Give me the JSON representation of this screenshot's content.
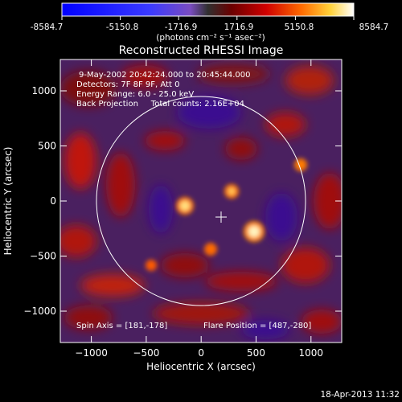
{
  "colorbar": {
    "ticks": [
      "-8584.7",
      "-5150.8",
      "-1716.9",
      "1716.9",
      "5150.8",
      "8584.7"
    ],
    "unit_label": "(photons cm⁻² s⁻¹ asec⁻²)"
  },
  "plot": {
    "title": "Reconstructed RHESSI Image",
    "xlabel": "Heliocentric X (arcsec)",
    "ylabel": "Heliocentric Y (arcsec)",
    "x_ticks": [
      "−1000",
      "−500",
      "0",
      "500",
      "1000"
    ],
    "y_ticks": [
      "1000",
      "500",
      "0",
      "−500",
      "−1000"
    ],
    "info_lines": [
      "9-May-2002 20:42:24.000 to 20:45:44.000",
      "Detectors: 7F 8F 9F, Att 0",
      "Energy Range: 6.0 - 25.0 keV",
      "Back Projection     Total counts: 2.16E+04"
    ],
    "spin_axis": "Spin Axis = [181,-178]",
    "flare_position": "Flare Position = [487,-280]"
  },
  "footer": {
    "timestamp": "18-Apr-2013 11:32"
  },
  "colors": {
    "background": "#000000",
    "foreground": "#ffffff"
  }
}
